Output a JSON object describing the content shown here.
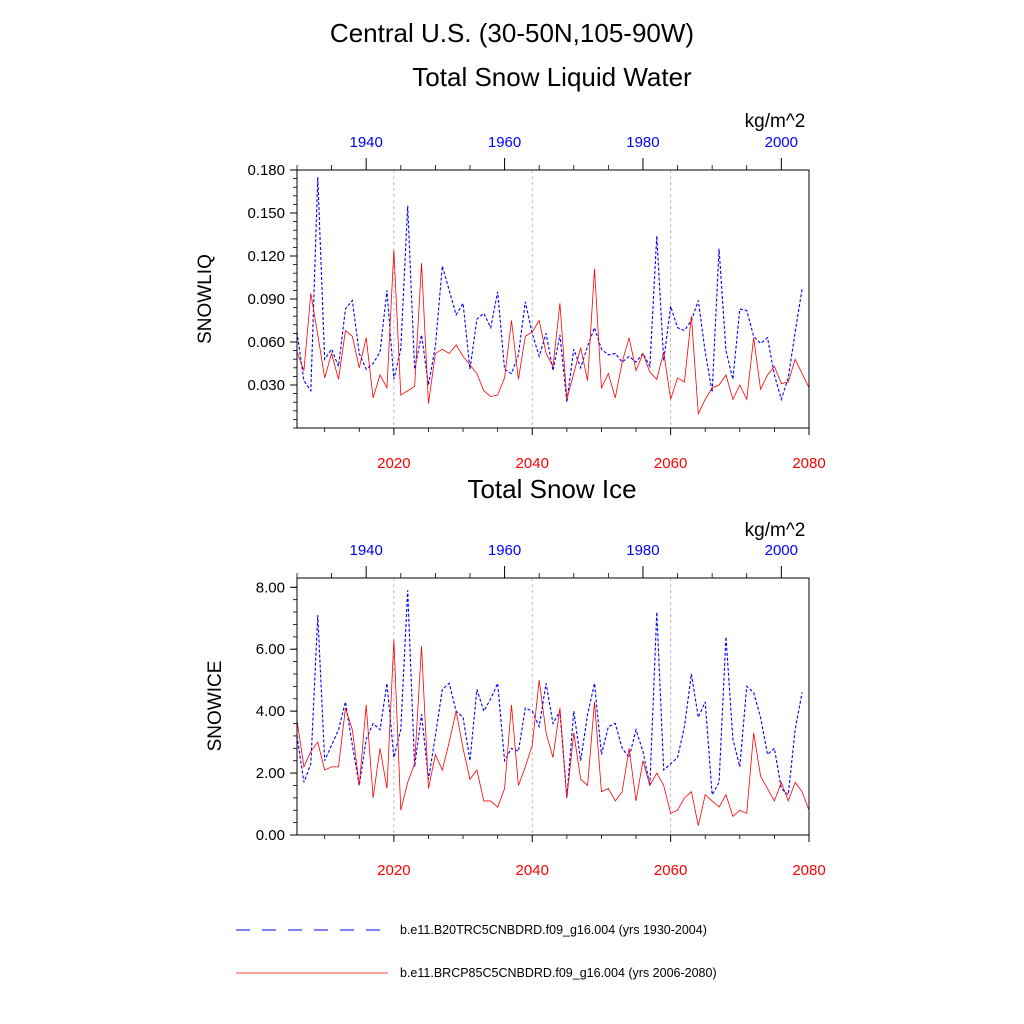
{
  "header": {
    "title": "Central U.S. (30-50N,105-90W)"
  },
  "chart_data": [
    {
      "type": "line",
      "title": "Total Snow Liquid Water",
      "units": "kg/m^2",
      "ylabel": "SNOWLIQ",
      "ylim": [
        0.0,
        0.18
      ],
      "yticks": [
        "0.030",
        "0.060",
        "0.090",
        "0.120",
        "0.150",
        "0.180"
      ],
      "bottom_axis": {
        "range": [
          2006,
          2080
        ],
        "ticks": [
          "2020",
          "2040",
          "2060",
          "2080"
        ],
        "color": "#ff0000"
      },
      "top_axis": {
        "range": [
          1930,
          2004
        ],
        "ticks": [
          "1940",
          "1960",
          "1980",
          "2000"
        ],
        "color": "#0000ff"
      },
      "series": [
        {
          "name": "b.e11.B20TRC5CNBDRD.f09_g16.004 (yrs 1930-2004)",
          "color": "#0000ff",
          "style": "dashed",
          "start_year": 1930,
          "values": [
            0.067,
            0.033,
            0.026,
            0.175,
            0.048,
            0.055,
            0.043,
            0.083,
            0.089,
            0.052,
            0.041,
            0.045,
            0.053,
            0.096,
            0.034,
            0.055,
            0.155,
            0.041,
            0.065,
            0.03,
            0.057,
            0.113,
            0.096,
            0.079,
            0.087,
            0.041,
            0.076,
            0.08,
            0.07,
            0.095,
            0.041,
            0.038,
            0.051,
            0.088,
            0.066,
            0.05,
            0.066,
            0.04,
            0.065,
            0.018,
            0.055,
            0.042,
            0.057,
            0.07,
            0.055,
            0.051,
            0.052,
            0.046,
            0.05,
            0.046,
            0.052,
            0.043,
            0.134,
            0.047,
            0.085,
            0.07,
            0.068,
            0.075,
            0.089,
            0.053,
            0.025,
            0.125,
            0.054,
            0.034,
            0.083,
            0.082,
            0.064,
            0.059,
            0.063,
            0.037,
            0.02,
            0.035,
            0.067,
            0.097
          ]
        },
        {
          "name": "b.e11.BRCP85C5CNBDRD.f09_g16.004 (yrs 2006-2080)",
          "color": "#ff0000",
          "style": "solid",
          "start_year": 2006,
          "values": [
            0.053,
            0.04,
            0.094,
            0.065,
            0.035,
            0.052,
            0.034,
            0.068,
            0.064,
            0.042,
            0.063,
            0.021,
            0.037,
            0.028,
            0.124,
            0.023,
            0.026,
            0.029,
            0.115,
            0.017,
            0.052,
            0.055,
            0.052,
            0.058,
            0.05,
            0.044,
            0.038,
            0.026,
            0.022,
            0.023,
            0.035,
            0.075,
            0.034,
            0.064,
            0.067,
            0.075,
            0.052,
            0.043,
            0.087,
            0.02,
            0.038,
            0.056,
            0.033,
            0.111,
            0.028,
            0.038,
            0.021,
            0.046,
            0.063,
            0.04,
            0.052,
            0.039,
            0.034,
            0.053,
            0.02,
            0.035,
            0.032,
            0.078,
            0.01,
            0.02,
            0.028,
            0.03,
            0.037,
            0.02,
            0.03,
            0.02,
            0.063,
            0.027,
            0.037,
            0.043,
            0.031,
            0.032,
            0.048,
            0.038,
            0.028
          ]
        }
      ]
    },
    {
      "type": "line",
      "title": "Total Snow Ice",
      "units": "kg/m^2",
      "ylabel": "SNOWICE",
      "ylim": [
        0.0,
        8.3
      ],
      "yticks": [
        "0.00",
        "2.00",
        "4.00",
        "6.00",
        "8.00"
      ],
      "bottom_axis": {
        "range": [
          2006,
          2080
        ],
        "ticks": [
          "2020",
          "2040",
          "2060",
          "2080"
        ],
        "color": "#ff0000"
      },
      "top_axis": {
        "range": [
          1930,
          2004
        ],
        "ticks": [
          "1940",
          "1960",
          "1980",
          "2000"
        ],
        "color": "#0000ff"
      },
      "series": [
        {
          "name": "b.e11.B20TRC5CNBDRD.f09_g16.004 (yrs 1930-2004)",
          "color": "#0000ff",
          "style": "dashed",
          "start_year": 1930,
          "values": [
            3.2,
            1.7,
            2.3,
            7.1,
            2.4,
            2.9,
            3.4,
            4.3,
            2.9,
            1.6,
            3.1,
            3.6,
            3.4,
            4.9,
            2.5,
            3.4,
            7.9,
            2.2,
            3.9,
            1.8,
            3.2,
            4.7,
            4.9,
            4.0,
            3.8,
            2.4,
            4.7,
            4.0,
            4.4,
            4.9,
            2.4,
            2.8,
            2.7,
            4.1,
            4.0,
            3.5,
            4.9,
            3.6,
            4.0,
            1.2,
            4.0,
            2.4,
            3.9,
            4.9,
            2.6,
            3.5,
            3.6,
            2.8,
            2.5,
            3.4,
            2.7,
            1.6,
            7.2,
            2.1,
            2.3,
            2.5,
            3.5,
            5.2,
            3.8,
            4.3,
            1.3,
            1.7,
            6.4,
            3.1,
            2.2,
            4.8,
            4.6,
            3.8,
            2.6,
            2.8,
            1.5,
            1.3,
            3.4,
            4.6
          ]
        },
        {
          "name": "b.e11.BRCP85C5CNBDRD.f09_g16.004 (yrs 2006-2080)",
          "color": "#ff0000",
          "style": "solid",
          "start_year": 2006,
          "values": [
            3.7,
            2.2,
            2.7,
            3.0,
            2.1,
            2.2,
            2.2,
            4.1,
            3.4,
            1.6,
            4.2,
            1.2,
            2.8,
            1.5,
            6.3,
            0.8,
            1.7,
            2.3,
            6.1,
            1.5,
            2.6,
            2.1,
            3.0,
            4.0,
            2.8,
            1.8,
            2.1,
            1.1,
            1.1,
            0.9,
            1.5,
            4.2,
            1.6,
            2.2,
            2.9,
            5.0,
            3.3,
            2.5,
            4.1,
            1.2,
            3.3,
            1.8,
            1.6,
            4.3,
            1.4,
            1.5,
            1.1,
            1.4,
            2.8,
            1.1,
            2.4,
            1.6,
            2.0,
            1.6,
            0.7,
            0.8,
            1.2,
            1.4,
            0.3,
            1.3,
            1.1,
            0.9,
            1.3,
            0.6,
            0.8,
            0.7,
            3.3,
            1.9,
            1.5,
            1.1,
            1.7,
            1.1,
            1.7,
            1.4,
            0.8
          ]
        }
      ]
    }
  ],
  "legend": {
    "items": [
      {
        "label": "b.e11.B20TRC5CNBDRD.f09_g16.004 (yrs 1930-2004)",
        "color": "#0000ff",
        "style": "dashed"
      },
      {
        "label": "b.e11.BRCP85C5CNBDRD.f09_g16.004 (yrs 2006-2080)",
        "color": "#ff0000",
        "style": "solid"
      }
    ]
  }
}
